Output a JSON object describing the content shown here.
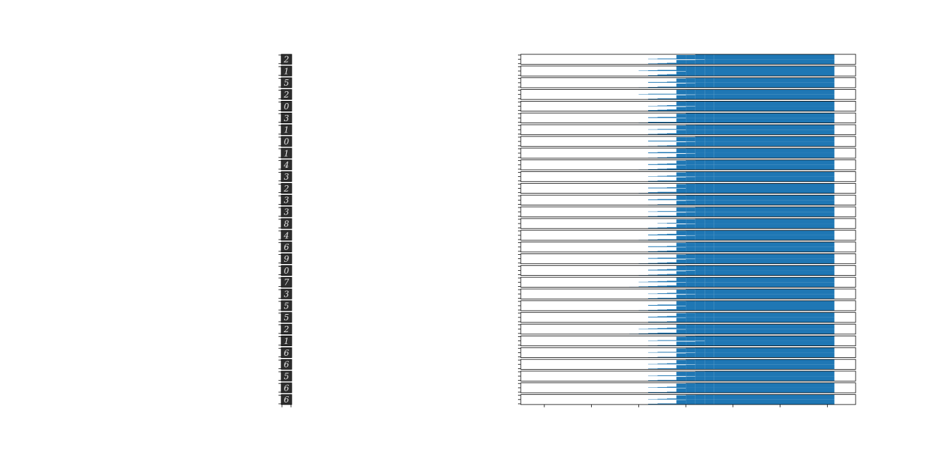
{
  "colors": {
    "bar": "#1f77b4",
    "frame": "#000000",
    "thumb_bg": "#2e2e2e",
    "digit": "#e6e6e6"
  },
  "digits": [
    "2",
    "1",
    "5",
    "2",
    "0",
    "3",
    "1",
    "0",
    "1",
    "4",
    "3",
    "2",
    "3",
    "3",
    "8",
    "4",
    "6",
    "9",
    "0",
    "7",
    "3",
    "5",
    "5",
    "2",
    "1",
    "6",
    "6",
    "5",
    "6",
    "6"
  ],
  "chart_data": {
    "type": "bar",
    "orientation": "horizontal-histogram-stack",
    "panels": 30,
    "bins": 16,
    "xlim": [
      -1.5,
      5.6
    ],
    "bin_edges_start": -0.4,
    "bin_width": 0.2,
    "x_ticks": [
      -1,
      0,
      1,
      2,
      3,
      4,
      5
    ],
    "row_ylim": [
      0,
      14
    ],
    "y_ticks_per_panel": 3,
    "tick_labels_visible": false,
    "series": [
      {
        "values": [
          [
            0,
            0,
            0,
            0,
            0,
            0,
            0,
            0,
            1,
            2,
            2,
            12,
            12,
            14,
            14,
            14
          ],
          [
            0,
            0,
            0,
            0,
            0,
            0,
            0,
            0,
            2,
            3,
            4,
            12,
            12,
            13,
            14,
            14
          ]
        ]
      },
      {
        "values": [
          [
            0,
            0,
            0,
            0,
            0,
            0,
            0,
            1,
            2,
            3,
            3,
            14,
            14,
            14,
            14,
            14
          ],
          [
            0,
            0,
            0,
            0,
            0,
            0,
            0,
            0,
            2,
            4,
            5,
            13,
            14,
            14,
            14,
            14
          ]
        ]
      },
      {
        "values": [
          [
            0,
            0,
            0,
            0,
            0,
            0,
            0,
            0,
            2,
            2,
            3,
            12,
            13,
            14,
            14,
            14
          ],
          [
            0,
            0,
            0,
            0,
            0,
            0,
            0,
            1,
            2,
            3,
            3,
            12,
            13,
            14,
            14,
            14
          ]
        ]
      },
      {
        "values": [
          [
            0,
            0,
            0,
            0,
            0,
            0,
            0,
            1,
            2,
            2,
            2,
            13,
            14,
            14,
            14,
            14
          ],
          [
            0,
            0,
            0,
            0,
            0,
            0,
            0,
            0,
            2,
            3,
            3,
            12,
            13,
            14,
            14,
            14
          ]
        ]
      },
      {
        "values": [
          [
            0,
            0,
            0,
            0,
            0,
            0,
            0,
            0,
            1,
            2,
            3,
            13,
            14,
            14,
            14,
            14
          ],
          [
            0,
            0,
            0,
            0,
            0,
            0,
            0,
            0,
            3,
            4,
            5,
            12,
            13,
            14,
            14,
            14
          ]
        ]
      },
      {
        "values": [
          [
            0,
            0,
            0,
            0,
            0,
            0,
            0,
            0,
            2,
            3,
            3,
            12,
            14,
            14,
            14,
            14
          ],
          [
            0,
            0,
            0,
            0,
            0,
            0,
            0,
            1,
            3,
            3,
            3,
            13,
            14,
            14,
            14,
            14
          ]
        ]
      },
      {
        "values": [
          [
            0,
            0,
            0,
            0,
            0,
            0,
            0,
            0,
            1,
            2,
            2,
            12,
            13,
            14,
            14,
            14
          ],
          [
            0,
            0,
            0,
            0,
            0,
            0,
            0,
            0,
            2,
            3,
            4,
            13,
            14,
            14,
            14,
            14
          ]
        ]
      },
      {
        "values": [
          [
            0,
            0,
            0,
            0,
            0,
            0,
            0,
            0,
            2,
            2,
            2,
            12,
            12,
            14,
            14,
            14
          ],
          [
            0,
            0,
            0,
            0,
            0,
            0,
            0,
            0,
            1,
            2,
            3,
            12,
            13,
            14,
            14,
            14
          ]
        ]
      },
      {
        "values": [
          [
            0,
            0,
            0,
            0,
            0,
            0,
            0,
            0,
            2,
            3,
            3,
            13,
            14,
            14,
            14,
            14
          ],
          [
            0,
            0,
            0,
            0,
            0,
            0,
            0,
            0,
            1,
            2,
            3,
            12,
            13,
            14,
            14,
            14
          ]
        ]
      },
      {
        "values": [
          [
            0,
            0,
            0,
            0,
            0,
            0,
            0,
            0,
            2,
            3,
            4,
            12,
            13,
            14,
            14,
            14
          ],
          [
            0,
            0,
            0,
            0,
            0,
            0,
            0,
            1,
            2,
            3,
            4,
            13,
            14,
            14,
            14,
            14
          ]
        ]
      },
      {
        "values": [
          [
            0,
            0,
            0,
            0,
            0,
            0,
            0,
            0,
            1,
            2,
            3,
            12,
            14,
            14,
            14,
            14
          ],
          [
            0,
            0,
            0,
            0,
            0,
            0,
            0,
            0,
            2,
            3,
            3,
            12,
            13,
            14,
            14,
            14
          ]
        ]
      },
      {
        "values": [
          [
            0,
            0,
            0,
            0,
            0,
            0,
            0,
            0,
            2,
            2,
            3,
            12,
            13,
            14,
            14,
            14
          ],
          [
            0,
            0,
            0,
            0,
            0,
            0,
            0,
            1,
            3,
            4,
            4,
            13,
            14,
            14,
            14,
            14
          ]
        ]
      },
      {
        "values": [
          [
            0,
            0,
            0,
            0,
            0,
            0,
            0,
            0,
            2,
            3,
            3,
            13,
            14,
            14,
            14,
            14
          ],
          [
            0,
            0,
            0,
            0,
            0,
            0,
            0,
            0,
            1,
            2,
            2,
            12,
            13,
            14,
            14,
            14
          ]
        ]
      },
      {
        "values": [
          [
            0,
            0,
            0,
            0,
            0,
            0,
            0,
            0,
            1,
            2,
            2,
            12,
            12,
            13,
            14,
            14
          ],
          [
            0,
            0,
            0,
            0,
            0,
            0,
            0,
            0,
            2,
            3,
            3,
            12,
            13,
            14,
            14,
            14
          ]
        ]
      },
      {
        "values": [
          [
            0,
            0,
            0,
            0,
            0,
            0,
            0,
            0,
            0,
            1,
            2,
            12,
            12,
            13,
            14,
            14
          ],
          [
            0,
            0,
            0,
            0,
            0,
            0,
            0,
            0,
            2,
            3,
            4,
            12,
            13,
            14,
            14,
            14
          ]
        ]
      },
      {
        "values": [
          [
            0,
            0,
            0,
            0,
            0,
            0,
            0,
            0,
            2,
            3,
            4,
            13,
            14,
            14,
            14,
            14
          ],
          [
            0,
            0,
            0,
            0,
            0,
            0,
            0,
            1,
            2,
            3,
            3,
            12,
            13,
            14,
            14,
            14
          ]
        ]
      },
      {
        "values": [
          [
            0,
            0,
            0,
            0,
            0,
            0,
            0,
            0,
            2,
            2,
            3,
            12,
            13,
            14,
            14,
            14
          ],
          [
            0,
            0,
            0,
            0,
            0,
            0,
            0,
            0,
            2,
            3,
            4,
            13,
            14,
            14,
            14,
            14
          ]
        ]
      },
      {
        "values": [
          [
            0,
            0,
            0,
            0,
            0,
            0,
            0,
            0,
            2,
            3,
            3,
            12,
            13,
            14,
            14,
            14
          ],
          [
            0,
            0,
            0,
            0,
            0,
            0,
            0,
            1,
            2,
            3,
            4,
            12,
            13,
            14,
            14,
            14
          ]
        ]
      },
      {
        "values": [
          [
            0,
            0,
            0,
            0,
            0,
            0,
            0,
            0,
            2,
            3,
            4,
            13,
            14,
            14,
            14,
            14
          ],
          [
            0,
            0,
            0,
            0,
            0,
            0,
            0,
            1,
            2,
            3,
            4,
            12,
            13,
            14,
            14,
            14
          ]
        ]
      },
      {
        "values": [
          [
            0,
            0,
            0,
            0,
            0,
            0,
            0,
            1,
            2,
            3,
            4,
            13,
            14,
            14,
            14,
            14
          ],
          [
            0,
            0,
            0,
            0,
            0,
            0,
            1,
            2,
            3,
            4,
            5,
            13,
            14,
            14,
            14,
            14
          ]
        ]
      },
      {
        "values": [
          [
            0,
            0,
            0,
            0,
            0,
            0,
            0,
            0,
            1,
            2,
            3,
            12,
            13,
            14,
            14,
            14
          ],
          [
            0,
            0,
            0,
            0,
            0,
            0,
            0,
            0,
            2,
            3,
            3,
            12,
            13,
            14,
            14,
            14
          ]
        ]
      },
      {
        "values": [
          [
            0,
            0,
            0,
            0,
            0,
            0,
            0,
            0,
            2,
            3,
            3,
            13,
            14,
            14,
            14,
            14
          ],
          [
            0,
            0,
            0,
            0,
            0,
            0,
            0,
            1,
            2,
            3,
            4,
            13,
            14,
            14,
            14,
            14
          ]
        ]
      },
      {
        "values": [
          [
            0,
            0,
            0,
            0,
            0,
            0,
            0,
            0,
            2,
            3,
            4,
            12,
            13,
            14,
            14,
            14
          ],
          [
            0,
            0,
            0,
            0,
            0,
            0,
            0,
            0,
            2,
            2,
            3,
            13,
            14,
            14,
            14,
            14
          ]
        ]
      },
      {
        "values": [
          [
            0,
            0,
            0,
            0,
            0,
            0,
            0,
            1,
            2,
            3,
            4,
            13,
            14,
            14,
            14,
            14
          ],
          [
            0,
            0,
            0,
            0,
            0,
            0,
            1,
            2,
            3,
            4,
            4,
            13,
            14,
            14,
            14,
            14
          ]
        ]
      },
      {
        "values": [
          [
            0,
            0,
            0,
            0,
            0,
            0,
            0,
            0,
            1,
            2,
            2,
            12,
            13,
            14,
            14,
            14
          ],
          [
            0,
            0,
            0,
            0,
            0,
            0,
            0,
            0,
            1,
            2,
            2,
            12,
            12,
            13,
            14,
            14
          ]
        ]
      },
      {
        "values": [
          [
            0,
            0,
            0,
            0,
            0,
            0,
            0,
            0,
            1,
            2,
            2,
            12,
            13,
            14,
            14,
            14
          ],
          [
            0,
            0,
            0,
            0,
            0,
            0,
            0,
            0,
            1,
            2,
            2,
            12,
            13,
            14,
            14,
            14
          ]
        ]
      },
      {
        "values": [
          [
            0,
            0,
            0,
            0,
            0,
            0,
            0,
            0,
            1,
            2,
            3,
            12,
            13,
            14,
            14,
            14
          ],
          [
            0,
            0,
            0,
            0,
            0,
            0,
            0,
            0,
            2,
            3,
            3,
            12,
            13,
            14,
            14,
            14
          ]
        ]
      },
      {
        "values": [
          [
            0,
            0,
            0,
            0,
            0,
            0,
            0,
            0,
            1,
            2,
            2,
            12,
            12,
            13,
            14,
            14
          ],
          [
            0,
            0,
            0,
            0,
            0,
            0,
            0,
            0,
            2,
            3,
            3,
            12,
            13,
            14,
            14,
            14
          ]
        ]
      },
      {
        "values": [
          [
            0,
            0,
            0,
            0,
            0,
            0,
            0,
            0,
            1,
            2,
            3,
            12,
            13,
            14,
            14,
            14
          ],
          [
            0,
            0,
            0,
            0,
            0,
            0,
            0,
            0,
            2,
            2,
            3,
            13,
            14,
            14,
            14,
            14
          ]
        ]
      },
      {
        "values": [
          [
            0,
            0,
            0,
            0,
            0,
            0,
            0,
            0,
            1,
            2,
            3,
            12,
            13,
            14,
            14,
            14
          ],
          [
            0,
            0,
            0,
            0,
            0,
            0,
            0,
            0,
            2,
            3,
            3,
            13,
            14,
            14,
            14,
            14
          ]
        ]
      }
    ]
  }
}
